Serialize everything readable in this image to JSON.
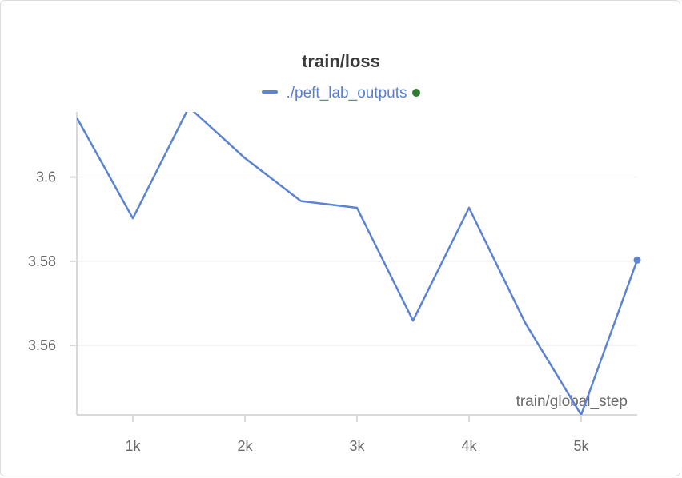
{
  "colors": {
    "series": "#5b83d2",
    "status_dot": "#2e7d32",
    "grid": "#ececec",
    "axis": "#d9d9d9"
  },
  "chart_data": {
    "type": "line",
    "title": "train/loss",
    "xlabel": "train/global_step",
    "ylabel": "",
    "xlim": [
      500,
      5500
    ],
    "ylim": [
      3.5435,
      3.6155
    ],
    "x_ticks": [
      1000,
      2000,
      3000,
      4000,
      5000
    ],
    "x_tick_labels": [
      "1k",
      "2k",
      "3k",
      "4k",
      "5k"
    ],
    "y_ticks": [
      3.56,
      3.58,
      3.6
    ],
    "y_tick_labels": [
      "3.56",
      "3.58",
      "3.6"
    ],
    "grid": true,
    "legend_position": "top-center",
    "series": [
      {
        "name": "./peft_lab_outputs",
        "x": [
          500,
          1000,
          1500,
          2000,
          2500,
          3000,
          3500,
          4000,
          4500,
          5000,
          5500
        ],
        "y": [
          3.6141,
          3.5902,
          3.6166,
          3.6045,
          3.5943,
          3.5927,
          3.5659,
          3.5927,
          3.5654,
          3.5435,
          3.5803
        ]
      }
    ]
  }
}
